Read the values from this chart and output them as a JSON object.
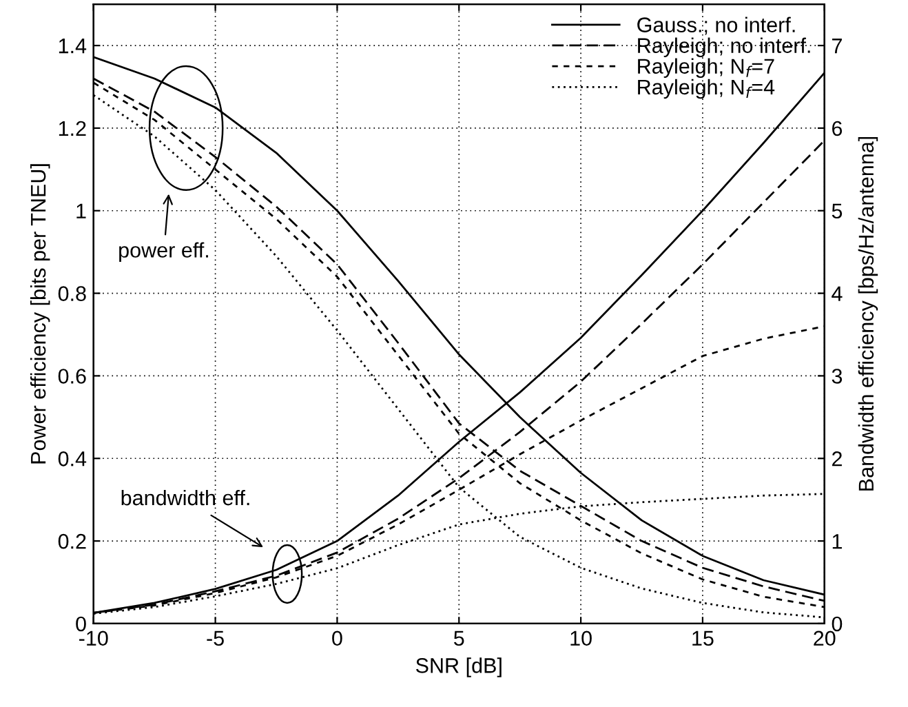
{
  "chart_data": {
    "type": "line",
    "xlabel": "SNR [dB]",
    "ylabel": "Power efficiency [bits per TNEU]",
    "y2label": "Bandwidth efficiency [bps/Hz/antenna]",
    "x": [
      -10,
      -7.5,
      -5,
      -2.5,
      0,
      2.5,
      5,
      7.5,
      10,
      12.5,
      15,
      17.5,
      20
    ],
    "xlim": [
      -10,
      20
    ],
    "xticks": [
      -10,
      -5,
      0,
      5,
      10,
      15,
      20
    ],
    "ylim": [
      0,
      1.5
    ],
    "yticks": [
      0,
      0.2,
      0.4,
      0.6,
      0.8,
      1,
      1.2,
      1.4
    ],
    "y2lim": [
      0,
      7.5
    ],
    "y2ticks": [
      0,
      1,
      2,
      3,
      4,
      5,
      6,
      7
    ],
    "grid": true,
    "legend": "top right",
    "marker": "none",
    "series": [
      {
        "name": "Gauss.; no interf.",
        "color": "#000000",
        "line_style": "solid",
        "values": [
          1.372,
          1.32,
          1.25,
          1.14,
          1.0,
          0.83,
          0.652,
          0.5,
          0.365,
          0.25,
          0.164,
          0.105,
          0.07
        ]
      },
      {
        "name": "Rayleigh; no interf.",
        "color": "#000000",
        "line_style": "dashed",
        "values": [
          1.32,
          1.24,
          1.13,
          1.01,
          0.87,
          0.68,
          0.485,
          0.37,
          0.285,
          0.2,
          0.135,
          0.09,
          0.055
        ]
      },
      {
        "name": "Rayleigh; N$_{f}$=7",
        "color": "#000000",
        "line_style": "short-dashed",
        "values": [
          1.31,
          1.22,
          1.1,
          0.98,
          0.84,
          0.65,
          0.46,
          0.34,
          0.25,
          0.17,
          0.107,
          0.065,
          0.04
        ]
      },
      {
        "name": "Rayleigh; N$_{f}$=4",
        "color": "#000000",
        "line_style": "dotted",
        "values": [
          1.28,
          1.18,
          1.05,
          0.89,
          0.71,
          0.52,
          0.33,
          0.21,
          0.135,
          0.085,
          0.05,
          0.027,
          0.015
        ]
      },
      {
        "axis": "y2",
        "color": "#000000",
        "line_style": "solid",
        "values": [
          0.13,
          0.25,
          0.42,
          0.65,
          1.0,
          1.55,
          2.2,
          2.8,
          3.46,
          4.22,
          5.0,
          5.82,
          6.67
        ]
      },
      {
        "axis": "y2",
        "color": "#000000",
        "line_style": "dashed",
        "values": [
          0.13,
          0.23,
          0.39,
          0.58,
          0.86,
          1.27,
          1.76,
          2.32,
          2.93,
          3.63,
          4.35,
          5.1,
          5.85
        ]
      },
      {
        "axis": "y2",
        "color": "#000000",
        "line_style": "short-dashed",
        "values": [
          0.13,
          0.22,
          0.37,
          0.56,
          0.82,
          1.2,
          1.62,
          2.05,
          2.46,
          2.85,
          3.24,
          3.45,
          3.6
        ]
      },
      {
        "axis": "y2",
        "color": "#000000",
        "line_style": "dotted",
        "values": [
          0.12,
          0.2,
          0.33,
          0.48,
          0.67,
          0.95,
          1.2,
          1.33,
          1.42,
          1.47,
          1.51,
          1.55,
          1.57
        ]
      }
    ],
    "annotations": [
      "power eff.",
      "bandwidth eff."
    ]
  }
}
